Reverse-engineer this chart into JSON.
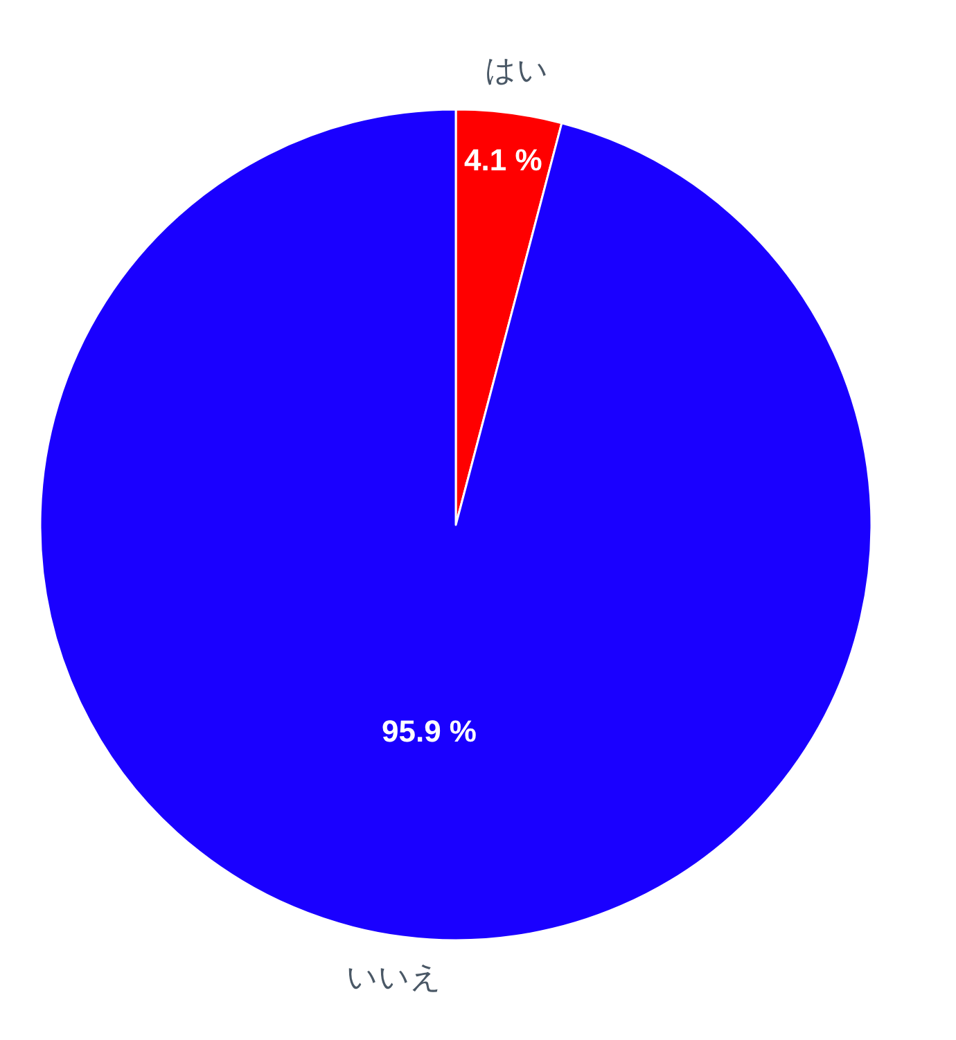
{
  "chart_data": {
    "type": "pie",
    "categories": [
      "はい",
      "いいえ"
    ],
    "values": [
      4.1,
      95.9
    ],
    "colors": [
      "#ff0000",
      "#1a00ff"
    ],
    "value_labels": [
      "4.1 %",
      "95.9 %"
    ],
    "legend": false
  }
}
